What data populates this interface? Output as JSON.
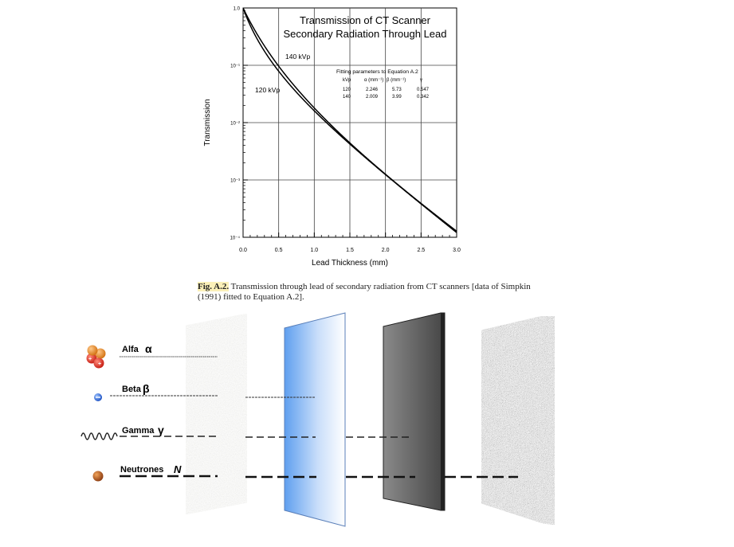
{
  "chart_data": {
    "type": "line",
    "title": "Transmission of CT Scanner Secondary Radiation Through Lead",
    "title_lines": [
      "Transmission of CT Scanner",
      "Secondary Radiation Through Lead"
    ],
    "xlabel": "Lead Thickness (mm)",
    "ylabel": "Transmission",
    "xlim": [
      0.0,
      3.0
    ],
    "ylim": [
      0.0001,
      1.0
    ],
    "yscale": "log",
    "grid": true,
    "x_ticks": [
      "0.0",
      "0.5",
      "1.0",
      "1.5",
      "2.0",
      "2.5",
      "3.0"
    ],
    "y_ticks": [
      "1.0",
      "10⁻¹",
      "10⁻²",
      "10⁻³",
      "10⁻⁴"
    ],
    "series": [
      {
        "name": "140 kVp",
        "alpha": 2.009,
        "beta": 3.99,
        "gamma": 0.342
      },
      {
        "name": "120 kVp",
        "alpha": 2.246,
        "beta": 5.73,
        "gamma": 0.547
      }
    ],
    "table": {
      "title": "Fitting parameters to Equation A.2",
      "headers": [
        "kVp",
        "α (mm⁻¹)",
        "β (mm⁻¹)",
        "γ"
      ],
      "rows": [
        [
          "120",
          "2.246",
          "5.73",
          "0.547"
        ],
        [
          "140",
          "2.009",
          "3.99",
          "0.342"
        ]
      ]
    }
  },
  "caption": {
    "fig_label": "Fig. A.2.",
    "text": " Transmission through lead of secondary radiation from CT scanners [data of Simpkin (1991) fitted to Equation A.2]."
  },
  "diagram": {
    "radiations": [
      {
        "label": "Alfa",
        "symbol": "α"
      },
      {
        "label": "Beta",
        "symbol": "β"
      },
      {
        "label": "Gamma",
        "symbol": "γ"
      },
      {
        "label": "Neutrones",
        "symbol": "N"
      }
    ]
  }
}
